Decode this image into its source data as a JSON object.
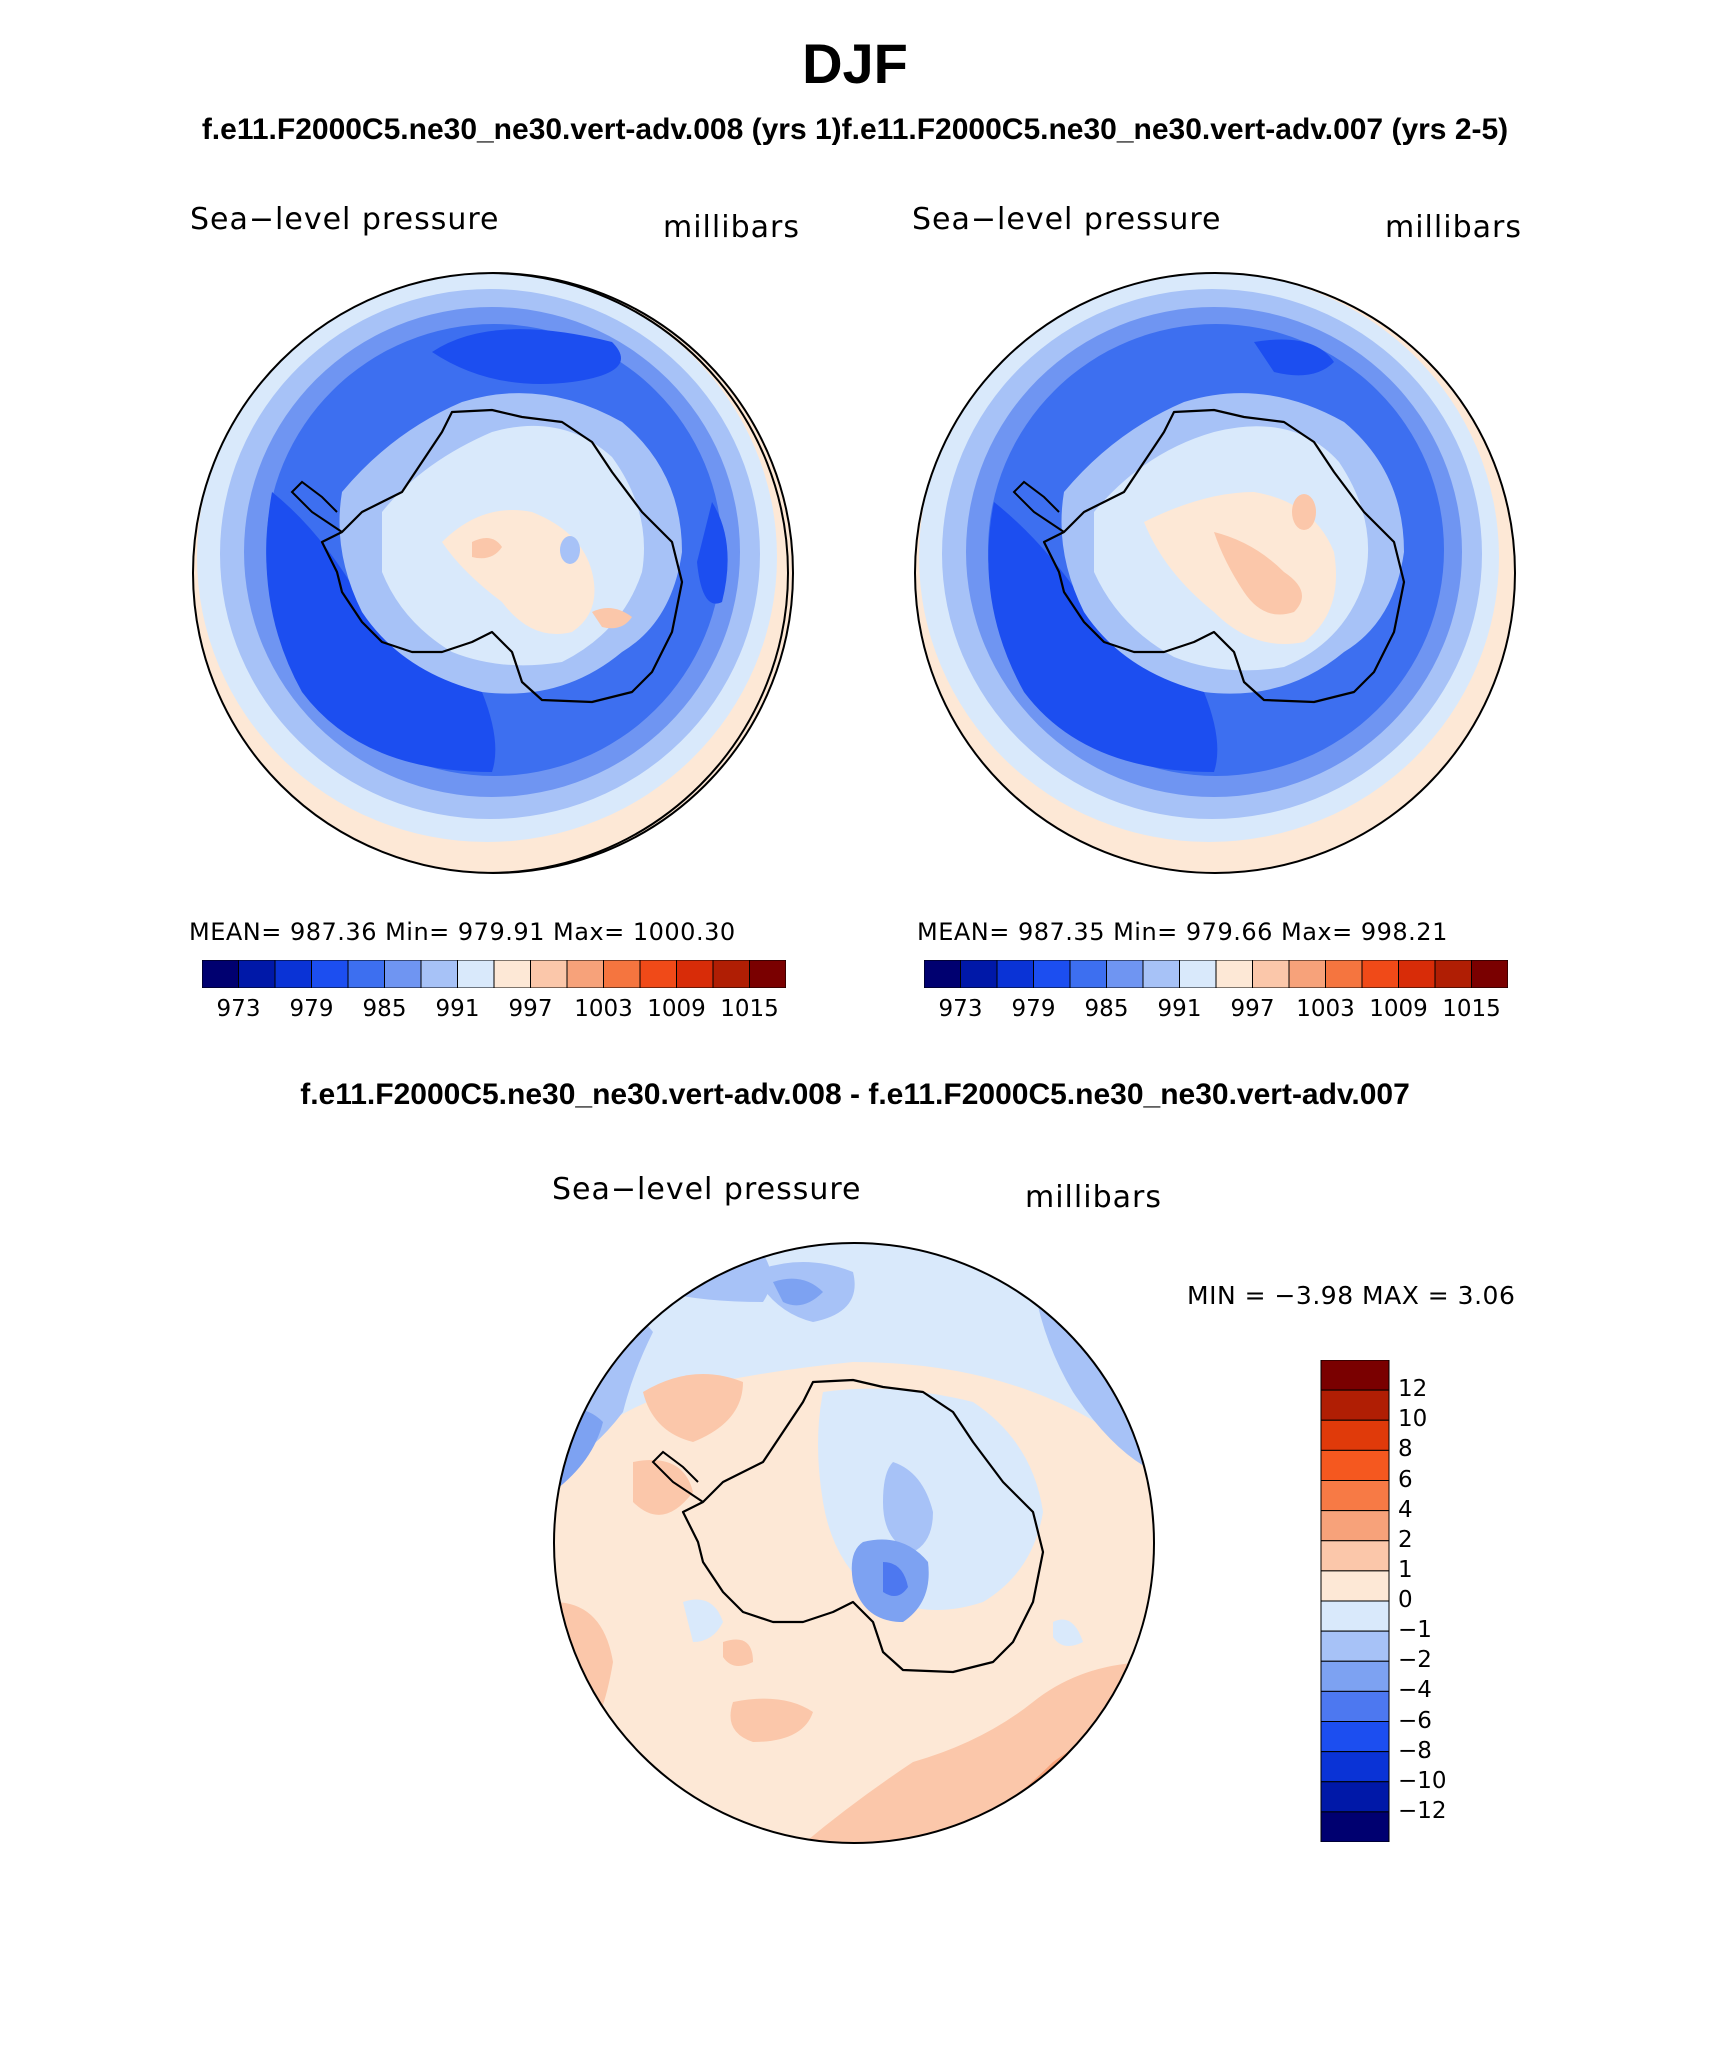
{
  "season": "DJF",
  "case_titles": "f.e11.F2000C5.ne30_ne30.vert-adv.008 (yrs 1)f.e11.F2000C5.ne30_ne30.vert-adv.007 (yrs 2-5)",
  "diff_title": "f.e11.F2000C5.ne30_ne30.vert-adv.008 - f.e11.F2000C5.ne30_ne30.vert-adv.007",
  "panels": [
    {
      "variable": "Sea−level pressure",
      "units": "millibars",
      "stats": "MEAN= 987.36   Min= 979.91   Max= 1000.30"
    },
    {
      "variable": "Sea−level pressure",
      "units": "millibars",
      "stats": "MEAN= 987.35   Min= 979.66   Max= 998.21"
    }
  ],
  "diff_panel": {
    "variable": "Sea−level pressure",
    "units": "millibars",
    "minmax": "MIN =   −3.98 MAX =     3.06"
  },
  "colorbar": {
    "labels": [
      "973",
      "979",
      "985",
      "991",
      "997",
      "1003",
      "1009",
      "1015"
    ],
    "colors": [
      "#000070",
      "#0018a8",
      "#0a33d6",
      "#1c4ef0",
      "#3d6ff0",
      "#6f95f2",
      "#a7c2f7",
      "#d9e9fb",
      "#fde8d6",
      "#fbc7aa",
      "#f7a27a",
      "#f5753f",
      "#f04a18",
      "#d82c08",
      "#b01e04",
      "#7a0000"
    ]
  },
  "diff_colorbar": {
    "labels": [
      "12",
      "10",
      "8",
      "6",
      "4",
      "2",
      "1",
      "0",
      "−1",
      "−2",
      "−4",
      "−6",
      "−8",
      "−10",
      "−12"
    ],
    "colors": [
      "#7a0000",
      "#b01e04",
      "#e03a0a",
      "#f5581f",
      "#f77a45",
      "#f7a27a",
      "#fbc7aa",
      "#fde8d6",
      "#d9e9fb",
      "#a7c2f7",
      "#7da2f2",
      "#4d78f0",
      "#1c4ef0",
      "#0a33d6",
      "#0018a8",
      "#000070"
    ]
  }
}
